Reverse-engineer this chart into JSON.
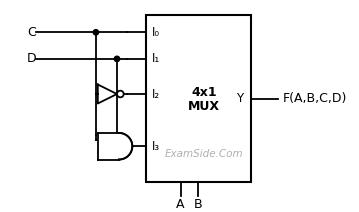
{
  "bg_color": "#ffffff",
  "mux_label_4x1": "4x1",
  "mux_label_mux": "MUX",
  "input_labels": [
    "I₀",
    "I₁",
    "I₂",
    "I₃"
  ],
  "output_label": "Y",
  "output_func": "F(A,B,C,D)",
  "select_labels": [
    "A",
    "B"
  ],
  "input_C": "C",
  "input_D": "D",
  "watermark": "ExamSide.Com",
  "line_color": "#000000",
  "text_color": "#000000",
  "watermark_color": "#b0b0b0",
  "font_size_labels": 9,
  "font_size_io": 8.5,
  "font_size_watermark": 7.5
}
